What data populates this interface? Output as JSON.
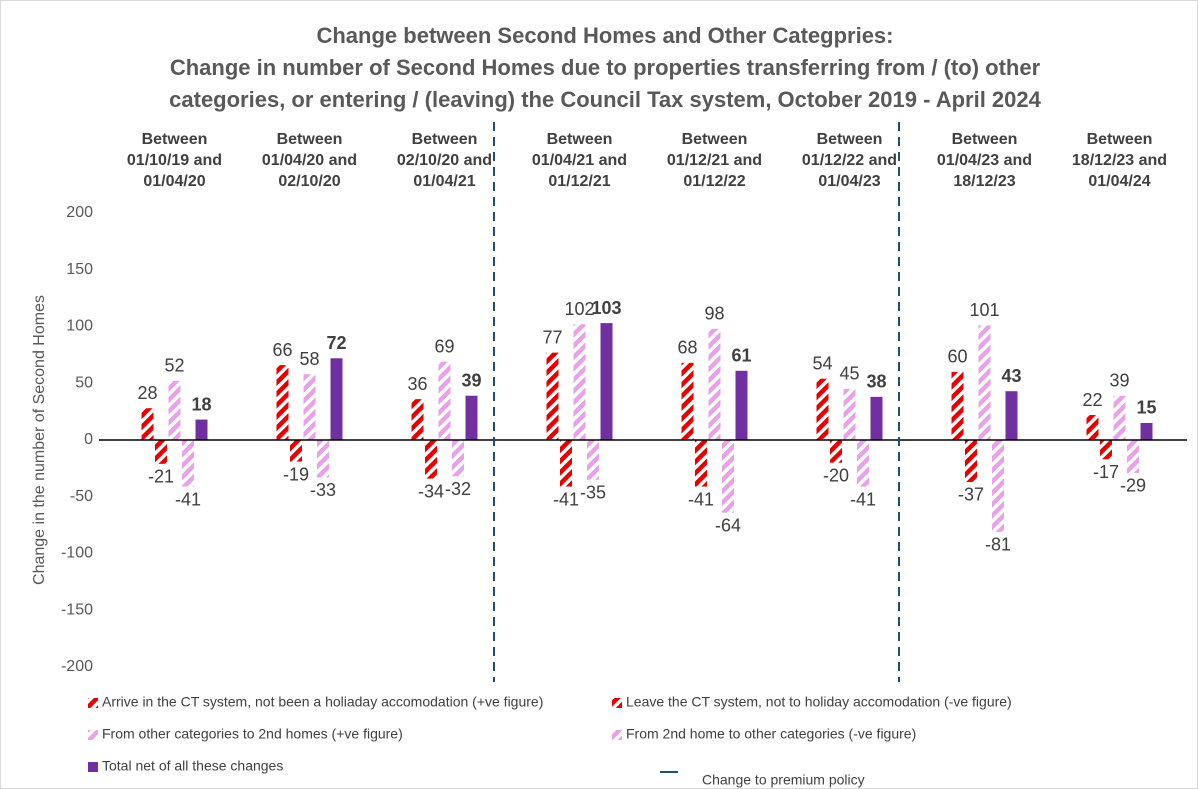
{
  "chart_data": {
    "type": "bar",
    "title": [
      "Change between Second Homes and Other Categpries:",
      "Change in number of Second Homes due to properties transferring from / (to) other",
      "categories, or entering / (leaving) the Council Tax system, October 2019 - April 2024"
    ],
    "y_label": "Change in the number of Second Homes",
    "categories": [
      [
        "Between",
        "01/10/19 and",
        "01/04/20"
      ],
      [
        "Between",
        "01/04/20 and",
        "02/10/20"
      ],
      [
        "Between",
        "02/10/20 and",
        "01/04/21"
      ],
      [
        "Between",
        "01/04/21 and",
        "01/12/21"
      ],
      [
        "Between",
        "01/12/21 and",
        "01/12/22"
      ],
      [
        "Between",
        "01/12/22 and",
        "01/04/23"
      ],
      [
        "Between",
        "01/04/23 and",
        "18/12/23"
      ],
      [
        "Between",
        "18/12/23 and",
        "01/04/24"
      ]
    ],
    "series": [
      {
        "name": "Arrive in the CT system, not been a holiaday accomodation (+ve figure)",
        "color": "#e60000",
        "pattern": "hatch",
        "values": [
          28,
          66,
          36,
          77,
          68,
          54,
          60,
          22
        ]
      },
      {
        "name": "Leave the CT system, not to holiday accomodation (-ve figure)",
        "color": "#e60000",
        "pattern": "hatch",
        "values": [
          -21,
          -19,
          -34,
          -41,
          -41,
          -20,
          -37,
          -17
        ]
      },
      {
        "name": "From other categories to 2nd homes (+ve figure)",
        "color": "#e8a2e8",
        "pattern": "hatch",
        "values": [
          52,
          58,
          69,
          102,
          98,
          45,
          101,
          39
        ]
      },
      {
        "name": "From 2nd home to other categories (-ve figure)",
        "color": "#e8a2e8",
        "pattern": "hatch",
        "values": [
          -41,
          -33,
          -32,
          -35,
          -64,
          -41,
          -81,
          -29
        ]
      },
      {
        "name": "Total net of all these changes",
        "color": "#7030a0",
        "pattern": "solid",
        "bold_labels": true,
        "values": [
          18,
          72,
          39,
          103,
          61,
          38,
          43,
          15
        ]
      }
    ],
    "policy_line": {
      "name": "Change to premium policy",
      "color": "#1f4e79",
      "before_categories": [
        3,
        6
      ]
    },
    "ylim": [
      -200,
      200
    ],
    "yticks": [
      -200,
      -150,
      -100,
      -50,
      0,
      50,
      100,
      150,
      200
    ],
    "grid": false
  }
}
